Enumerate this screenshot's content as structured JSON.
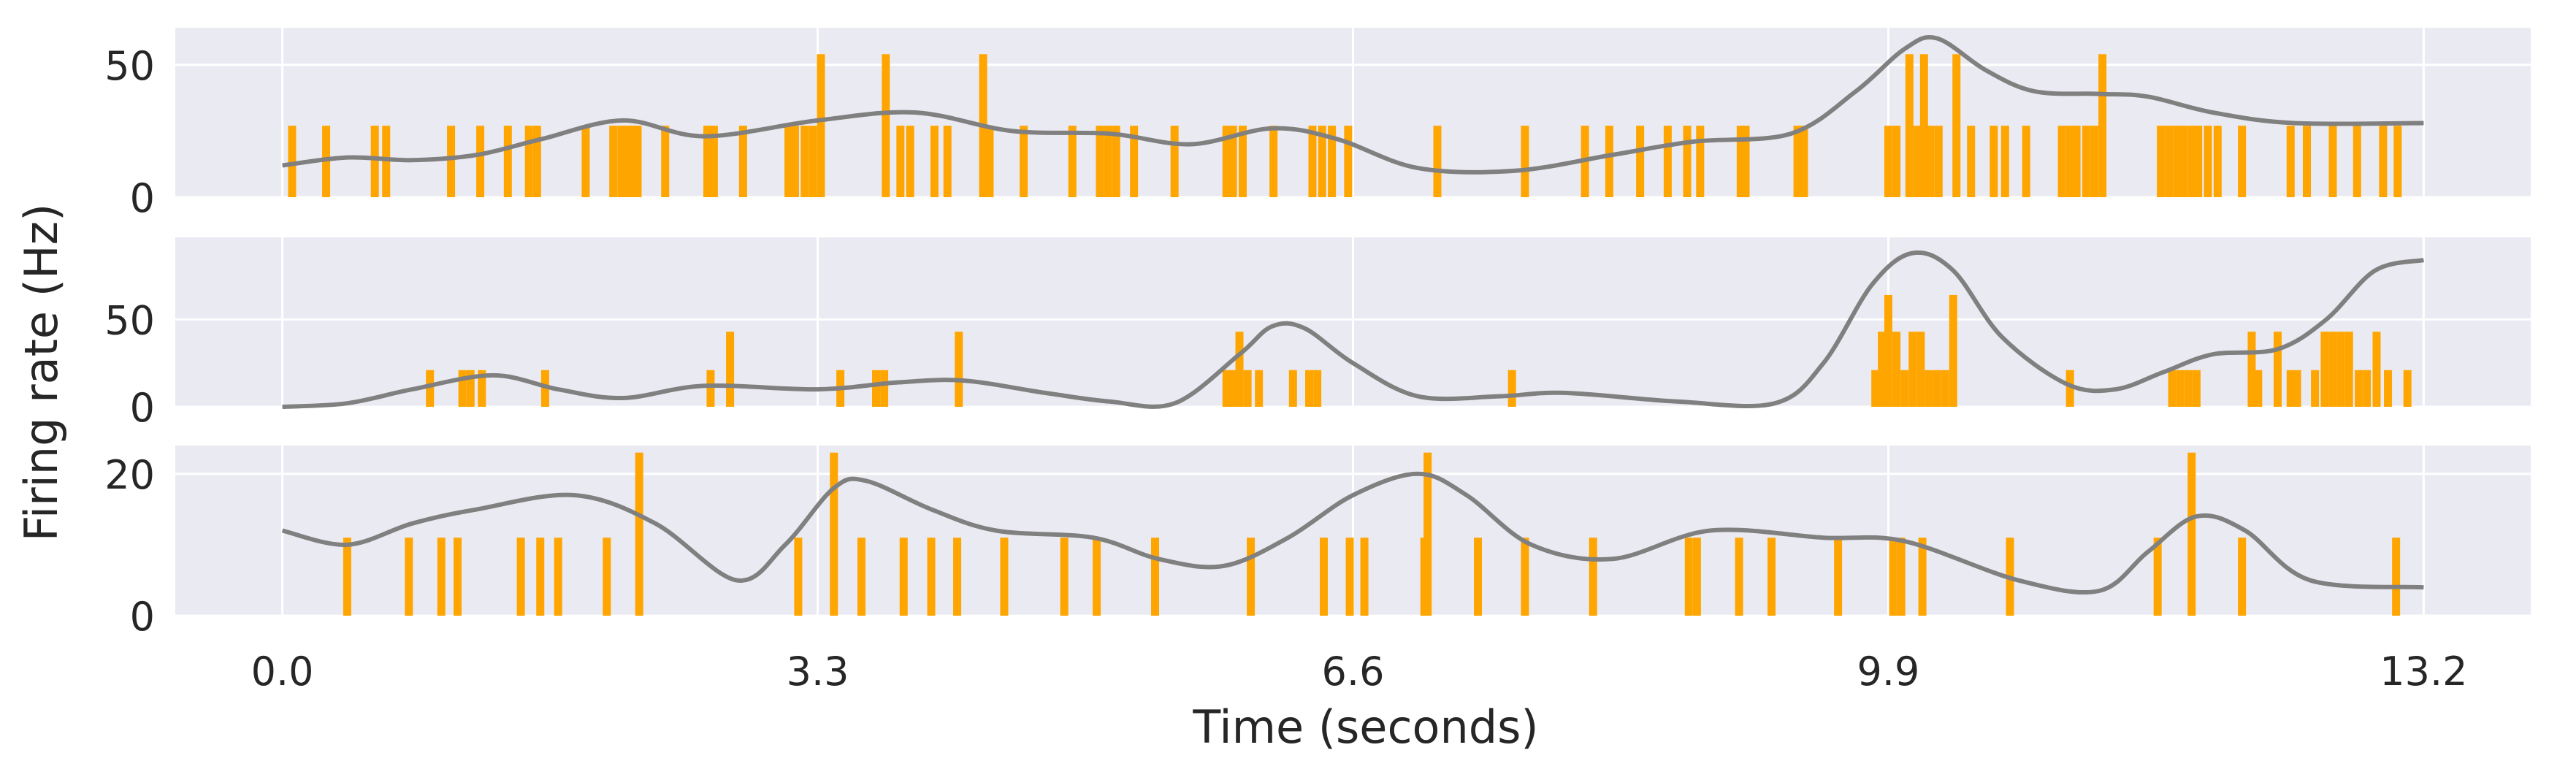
{
  "chart_data": [
    {
      "type": "bar",
      "panel": 1,
      "series": [
        {
          "kind": "binned spike histogram",
          "values": [
            [
              0.06,
              27
            ],
            [
              0.27,
              27
            ],
            [
              0.57,
              27
            ],
            [
              0.64,
              27
            ],
            [
              1.04,
              27
            ],
            [
              1.22,
              27
            ],
            [
              1.39,
              27
            ],
            [
              1.52,
              27
            ],
            [
              1.57,
              27
            ],
            [
              1.87,
              27
            ],
            [
              2.04,
              27
            ],
            [
              2.09,
              27
            ],
            [
              2.13,
              27
            ],
            [
              2.16,
              27
            ],
            [
              2.19,
              27
            ],
            [
              2.36,
              27
            ],
            [
              2.62,
              27
            ],
            [
              2.66,
              27
            ],
            [
              2.84,
              27
            ],
            [
              3.12,
              27
            ],
            [
              3.16,
              27
            ],
            [
              3.22,
              27
            ],
            [
              3.27,
              27
            ],
            [
              3.32,
              54
            ],
            [
              3.72,
              54
            ],
            [
              3.81,
              27
            ],
            [
              3.87,
              27
            ],
            [
              4.02,
              27
            ],
            [
              4.1,
              27
            ],
            [
              4.32,
              54
            ],
            [
              4.36,
              27
            ],
            [
              4.57,
              27
            ],
            [
              4.87,
              27
            ],
            [
              5.04,
              27
            ],
            [
              5.09,
              27
            ],
            [
              5.14,
              27
            ],
            [
              5.25,
              27
            ],
            [
              5.5,
              27
            ],
            [
              5.82,
              27
            ],
            [
              5.86,
              27
            ],
            [
              5.92,
              27
            ],
            [
              6.11,
              27
            ],
            [
              6.35,
              27
            ],
            [
              6.41,
              27
            ],
            [
              6.47,
              27
            ],
            [
              6.57,
              27
            ],
            [
              7.12,
              27
            ],
            [
              7.66,
              27
            ],
            [
              8.03,
              27
            ],
            [
              8.18,
              27
            ],
            [
              8.37,
              27
            ],
            [
              8.54,
              27
            ],
            [
              8.66,
              27
            ],
            [
              8.74,
              27
            ],
            [
              8.99,
              27
            ],
            [
              9.02,
              27
            ],
            [
              9.34,
              27
            ],
            [
              9.38,
              27
            ],
            [
              9.9,
              27
            ],
            [
              9.95,
              27
            ],
            [
              10.03,
              54
            ],
            [
              10.08,
              27
            ],
            [
              10.12,
              54
            ],
            [
              10.16,
              27
            ],
            [
              10.21,
              27
            ],
            [
              10.32,
              54
            ],
            [
              10.41,
              27
            ],
            [
              10.55,
              27
            ],
            [
              10.62,
              27
            ],
            [
              10.75,
              27
            ],
            [
              10.97,
              27
            ],
            [
              11.02,
              27
            ],
            [
              11.06,
              27
            ],
            [
              11.12,
              27
            ],
            [
              11.17,
              27
            ],
            [
              11.22,
              54
            ],
            [
              11.58,
              27
            ],
            [
              11.63,
              27
            ],
            [
              11.68,
              27
            ],
            [
              11.72,
              27
            ],
            [
              11.77,
              27
            ],
            [
              11.81,
              27
            ],
            [
              11.87,
              27
            ],
            [
              11.93,
              27
            ],
            [
              12.08,
              27
            ],
            [
              12.38,
              27
            ],
            [
              12.48,
              27
            ],
            [
              12.64,
              27
            ],
            [
              12.79,
              27
            ],
            [
              12.95,
              27
            ],
            [
              13.04,
              27
            ]
          ]
        },
        {
          "kind": "smoothed firing rate",
          "values": [
            [
              0,
              12
            ],
            [
              0.4,
              15
            ],
            [
              0.8,
              14
            ],
            [
              1.2,
              16
            ],
            [
              1.6,
              22
            ],
            [
              2.1,
              29
            ],
            [
              2.6,
              23
            ],
            [
              3.3,
              29
            ],
            [
              3.9,
              32
            ],
            [
              4.5,
              25
            ],
            [
              5.1,
              24
            ],
            [
              5.6,
              20
            ],
            [
              6.1,
              26
            ],
            [
              6.5,
              22
            ],
            [
              7.0,
              11
            ],
            [
              7.6,
              10
            ],
            [
              8.2,
              16
            ],
            [
              8.7,
              21
            ],
            [
              9.3,
              24
            ],
            [
              9.7,
              40
            ],
            [
              10.0,
              56
            ],
            [
              10.2,
              60
            ],
            [
              10.5,
              48
            ],
            [
              10.8,
              40
            ],
            [
              11.2,
              39
            ],
            [
              11.5,
              38
            ],
            [
              11.9,
              32
            ],
            [
              12.4,
              28
            ],
            [
              13.2,
              28
            ]
          ]
        }
      ],
      "ylim": [
        0,
        64
      ],
      "yticks": [
        "0",
        "50"
      ],
      "grid": true
    },
    {
      "type": "bar",
      "panel": 2,
      "series": [
        {
          "kind": "binned spike histogram",
          "values": [
            [
              0.91,
              21
            ],
            [
              1.11,
              21
            ],
            [
              1.16,
              21
            ],
            [
              1.23,
              21
            ],
            [
              1.62,
              21
            ],
            [
              2.64,
              21
            ],
            [
              2.76,
              43
            ],
            [
              3.44,
              21
            ],
            [
              3.66,
              21
            ],
            [
              3.71,
              21
            ],
            [
              4.17,
              43
            ],
            [
              5.82,
              21
            ],
            [
              5.86,
              21
            ],
            [
              5.9,
              43
            ],
            [
              5.95,
              21
            ],
            [
              6.02,
              21
            ],
            [
              6.23,
              21
            ],
            [
              6.33,
              21
            ],
            [
              6.38,
              21
            ],
            [
              7.58,
              21
            ],
            [
              9.82,
              21
            ],
            [
              9.86,
              43
            ],
            [
              9.9,
              64
            ],
            [
              9.95,
              43
            ],
            [
              10.0,
              21
            ],
            [
              10.05,
              43
            ],
            [
              10.1,
              43
            ],
            [
              10.15,
              21
            ],
            [
              10.2,
              21
            ],
            [
              10.25,
              21
            ],
            [
              10.3,
              64
            ],
            [
              11.02,
              21
            ],
            [
              11.65,
              21
            ],
            [
              11.7,
              21
            ],
            [
              11.75,
              21
            ],
            [
              11.8,
              21
            ],
            [
              12.14,
              43
            ],
            [
              12.18,
              21
            ],
            [
              12.3,
              43
            ],
            [
              12.38,
              21
            ],
            [
              12.42,
              21
            ],
            [
              12.53,
              21
            ],
            [
              12.59,
              43
            ],
            [
              12.64,
              43
            ],
            [
              12.69,
              43
            ],
            [
              12.74,
              43
            ],
            [
              12.8,
              21
            ],
            [
              12.85,
              21
            ],
            [
              12.91,
              43
            ],
            [
              12.98,
              21
            ],
            [
              13.1,
              21
            ]
          ]
        },
        {
          "kind": "smoothed firing rate",
          "values": [
            [
              0,
              0
            ],
            [
              0.4,
              2
            ],
            [
              0.8,
              10
            ],
            [
              1.3,
              18
            ],
            [
              1.7,
              10
            ],
            [
              2.1,
              5
            ],
            [
              2.6,
              12
            ],
            [
              3.3,
              10
            ],
            [
              3.8,
              14
            ],
            [
              4.2,
              15
            ],
            [
              4.7,
              8
            ],
            [
              5.1,
              3
            ],
            [
              5.5,
              2
            ],
            [
              5.9,
              30
            ],
            [
              6.1,
              46
            ],
            [
              6.3,
              45
            ],
            [
              6.6,
              25
            ],
            [
              7.0,
              6
            ],
            [
              7.5,
              6
            ],
            [
              7.9,
              8
            ],
            [
              8.6,
              3
            ],
            [
              9.2,
              2
            ],
            [
              9.5,
              25
            ],
            [
              9.8,
              70
            ],
            [
              10.05,
              88
            ],
            [
              10.3,
              78
            ],
            [
              10.6,
              40
            ],
            [
              11.0,
              13
            ],
            [
              11.3,
              10
            ],
            [
              11.6,
              20
            ],
            [
              11.9,
              30
            ],
            [
              12.3,
              33
            ],
            [
              12.6,
              50
            ],
            [
              12.9,
              78
            ],
            [
              13.2,
              84
            ]
          ]
        }
      ],
      "ylim": [
        0,
        97
      ],
      "yticks": [
        "0",
        "50"
      ],
      "grid": true
    },
    {
      "type": "bar",
      "panel": 3,
      "series": [
        {
          "kind": "binned spike histogram",
          "values": [
            [
              0.4,
              11
            ],
            [
              0.78,
              11
            ],
            [
              0.98,
              11
            ],
            [
              1.08,
              11
            ],
            [
              1.47,
              11
            ],
            [
              1.59,
              11
            ],
            [
              1.7,
              11
            ],
            [
              2.0,
              11
            ],
            [
              2.2,
              23
            ],
            [
              3.18,
              11
            ],
            [
              3.4,
              23
            ],
            [
              3.57,
              11
            ],
            [
              3.83,
              11
            ],
            [
              4.0,
              11
            ],
            [
              4.16,
              11
            ],
            [
              4.45,
              11
            ],
            [
              4.82,
              11
            ],
            [
              5.02,
              11
            ],
            [
              5.38,
              11
            ],
            [
              5.97,
              11
            ],
            [
              6.42,
              11
            ],
            [
              6.58,
              11
            ],
            [
              6.67,
              11
            ],
            [
              7.04,
              11
            ],
            [
              7.06,
              23
            ],
            [
              7.37,
              11
            ],
            [
              7.66,
              11
            ],
            [
              8.08,
              11
            ],
            [
              8.67,
              11
            ],
            [
              8.72,
              11
            ],
            [
              8.98,
              11
            ],
            [
              9.18,
              11
            ],
            [
              9.59,
              11
            ],
            [
              9.93,
              11
            ],
            [
              9.98,
              11
            ],
            [
              10.11,
              11
            ],
            [
              10.65,
              11
            ],
            [
              11.56,
              11
            ],
            [
              11.77,
              23
            ],
            [
              12.08,
              11
            ],
            [
              13.03,
              11
            ]
          ]
        },
        {
          "kind": "smoothed firing rate",
          "values": [
            [
              0,
              12
            ],
            [
              0.4,
              10
            ],
            [
              0.8,
              13
            ],
            [
              1.2,
              15
            ],
            [
              1.8,
              17
            ],
            [
              2.3,
              13
            ],
            [
              2.8,
              5
            ],
            [
              3.1,
              10
            ],
            [
              3.4,
              18
            ],
            [
              3.6,
              19
            ],
            [
              4.0,
              15
            ],
            [
              4.4,
              12
            ],
            [
              5.0,
              11
            ],
            [
              5.4,
              8
            ],
            [
              5.8,
              7
            ],
            [
              6.2,
              11
            ],
            [
              6.6,
              17
            ],
            [
              7.0,
              20
            ],
            [
              7.3,
              17
            ],
            [
              7.7,
              10
            ],
            [
              8.2,
              8
            ],
            [
              8.8,
              12
            ],
            [
              9.5,
              11
            ],
            [
              10.0,
              10.5
            ],
            [
              10.7,
              5
            ],
            [
              11.2,
              3.5
            ],
            [
              11.5,
              9
            ],
            [
              11.8,
              14
            ],
            [
              12.1,
              12
            ],
            [
              12.5,
              5
            ],
            [
              13.2,
              4
            ]
          ]
        }
      ],
      "ylim": [
        0,
        24
      ],
      "yticks": [
        "0",
        "20"
      ],
      "grid": true
    }
  ],
  "axes": {
    "xlabel": "Time (seconds)",
    "ylabel": "Firing rate (Hz)",
    "xlim": [
      -0.66,
      13.86
    ],
    "xticks": [
      0.0,
      3.3,
      6.6,
      9.9,
      13.2
    ],
    "xtick_labels": [
      "0.0",
      "3.3",
      "6.6",
      "9.9",
      "13.2"
    ]
  },
  "colors": {
    "plot_background": "#eaeaf2",
    "grid": "#ffffff",
    "bars": "#ffa500",
    "rate_line": "#808080",
    "text": "#262626"
  }
}
